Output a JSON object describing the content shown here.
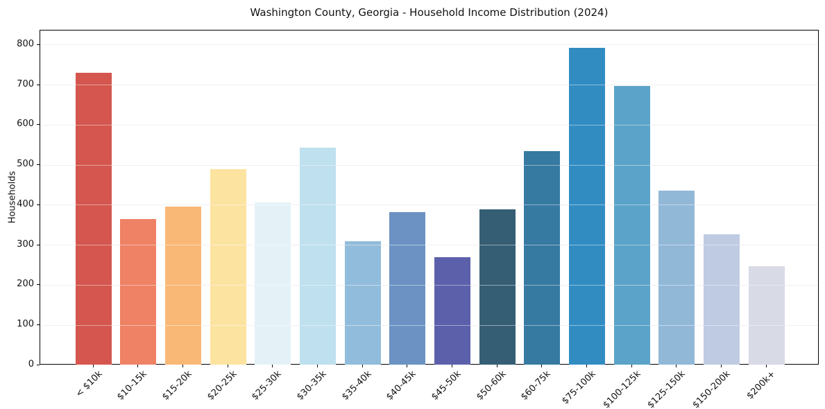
{
  "chart_data": {
    "type": "bar",
    "title": "Washington County, Georgia - Household Income Distribution (2024)",
    "xlabel": "",
    "ylabel": "Households",
    "ylim": [
      0,
      836
    ],
    "yticks": [
      0,
      100,
      200,
      300,
      400,
      500,
      600,
      700,
      800
    ],
    "grid": "horizontal",
    "legend": "none",
    "categories": [
      "< $10k",
      "$10-15k",
      "$15-20k",
      "$20-25k",
      "$25-30k",
      "$30-35k",
      "$35-40k",
      "$40-45k",
      "$45-50k",
      "$50-60k",
      "$60-75k",
      "$75-100k",
      "$100-125k",
      "$125-150k",
      "$150-200k",
      "$200k+"
    ],
    "values": [
      730,
      365,
      397,
      490,
      406,
      544,
      310,
      383,
      270,
      390,
      535,
      793,
      698,
      436,
      327,
      247
    ],
    "bar_colors": [
      "#d4564e",
      "#ef8265",
      "#fab876",
      "#fce3a0",
      "#e4f2f7",
      "#bfe0ee",
      "#92bcdb",
      "#6b92c3",
      "#5c60ab",
      "#355e74",
      "#3679a1",
      "#318cc2",
      "#5ba3c9",
      "#92b8d8",
      "#bfcbe2",
      "#d8dae6"
    ]
  }
}
